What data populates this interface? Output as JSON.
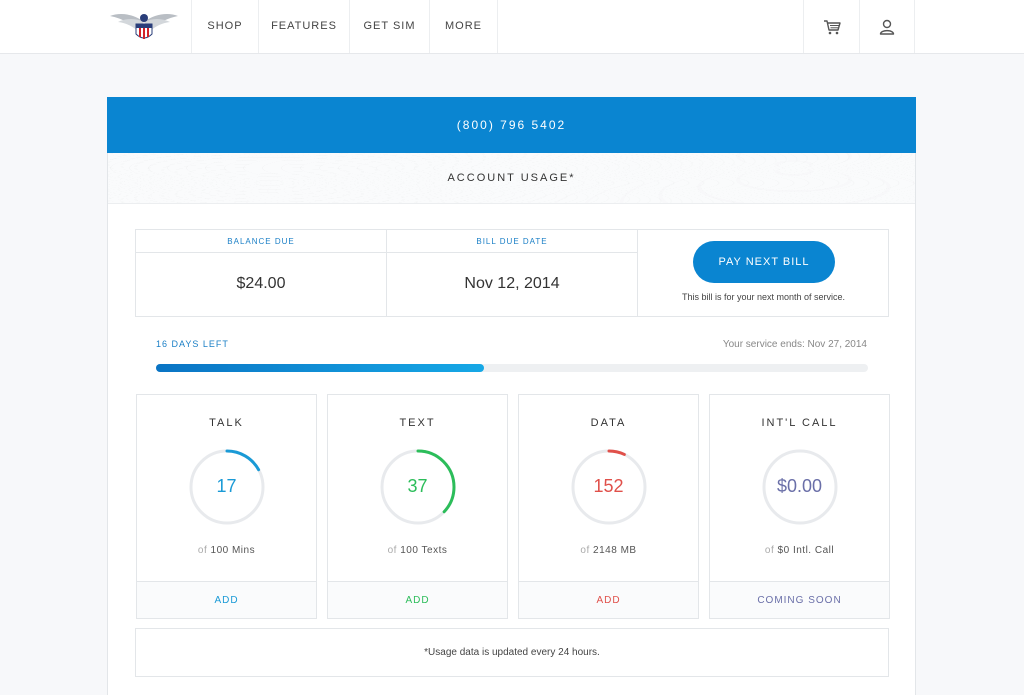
{
  "nav": {
    "links": [
      "SHOP",
      "FEATURES",
      "GET SIM",
      "MORE"
    ],
    "cart_icon": "cart-icon",
    "user_icon": "user-icon"
  },
  "account": {
    "phone": "(800) 796 5402",
    "header": "ACCOUNT USAGE*",
    "balance_label": "BALANCE DUE",
    "balance_value": "$24.00",
    "due_label": "BILL DUE DATE",
    "due_value": "Nov 12, 2014",
    "pay_button": "PAY NEXT BILL",
    "pay_note": "This bill is for your next month of service."
  },
  "service": {
    "days_left": "16 DAYS LEFT",
    "ends": "Your service ends: Nov 27, 2014",
    "progress": 0.46
  },
  "usage": [
    {
      "title": "TALK",
      "value": "17",
      "of": "of",
      "total": "100 Mins",
      "action": "ADD",
      "color": "#1a9ad6",
      "fraction": 0.17
    },
    {
      "title": "TEXT",
      "value": "37",
      "of": "of",
      "total": "100 Texts",
      "action": "ADD",
      "color": "#2cbd5a",
      "fraction": 0.37
    },
    {
      "title": "DATA",
      "value": "152",
      "of": "of",
      "total": "2148 MB",
      "action": "ADD",
      "color": "#e0504a",
      "fraction": 0.07
    },
    {
      "title": "INT'L CALL",
      "value": "$0.00",
      "of": "of",
      "total": "$0 Intl. Call",
      "action": "COMING SOON",
      "color": "#6a6fa8",
      "fraction": 0
    }
  ],
  "footnote": "*Usage data is updated every 24 hours.",
  "colors": {
    "brand_blue": "#0a85d1",
    "border": "#e3e6e9"
  }
}
